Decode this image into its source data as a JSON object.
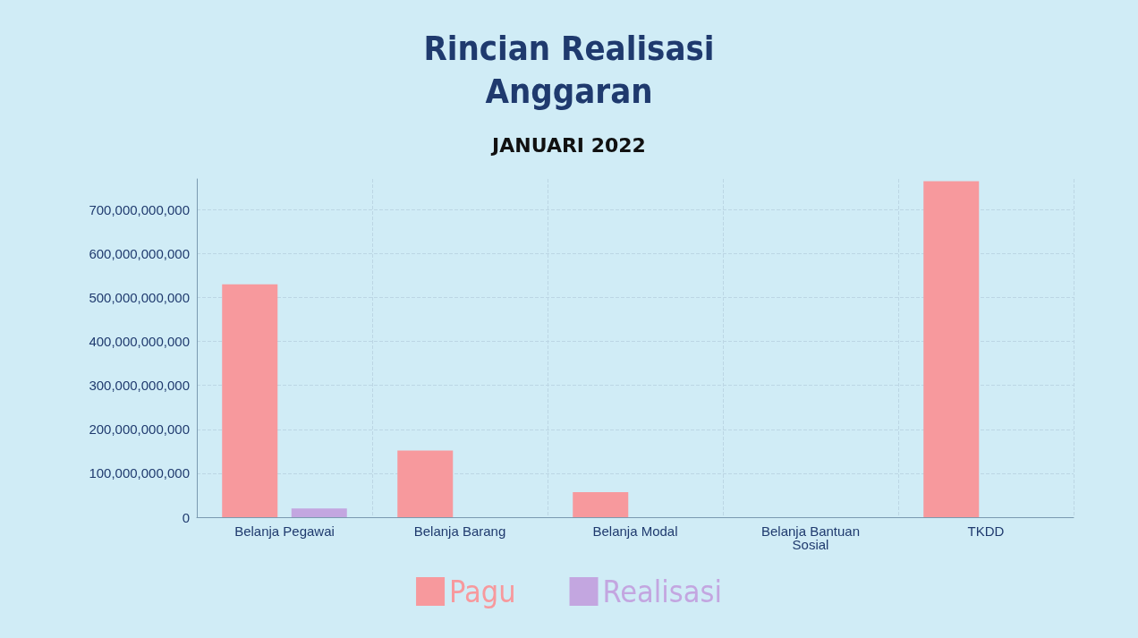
{
  "chart_data": {
    "type": "bar",
    "title": "Rincian Realisasi\nAnggaran",
    "subtitle": "JANUARI 2022",
    "categories": [
      "Belanja Pegawai",
      "Belanja Barang",
      "Belanja Modal",
      "Belanja Bantuan\nSosial",
      "TKDD"
    ],
    "series": [
      {
        "name": "Pagu",
        "color": "#f7999d",
        "values": [
          530000000000,
          152000000000,
          57000000000,
          0,
          765000000000
        ]
      },
      {
        "name": "Realisasi",
        "color": "#c3a6e0",
        "values": [
          20000000000,
          0,
          0,
          0,
          0
        ]
      }
    ],
    "ylim": [
      0,
      770000000000
    ],
    "yticks": [
      0,
      {
        "value": 100000000000,
        "label": "100,000,000,000"
      },
      {
        "value": 200000000000,
        "label": "200,000,000,000"
      },
      {
        "value": 300000000000,
        "label": "300,000,000,000"
      },
      {
        "value": 400000000000,
        "label": "400,000,000,000"
      },
      {
        "value": 500000000000,
        "label": "500,000,000,000"
      },
      {
        "value": 600000000000,
        "label": "600,000,000,000"
      },
      {
        "value": 700000000000,
        "label": "700,000,000,000"
      }
    ],
    "grid": true,
    "legend": "bottom"
  }
}
